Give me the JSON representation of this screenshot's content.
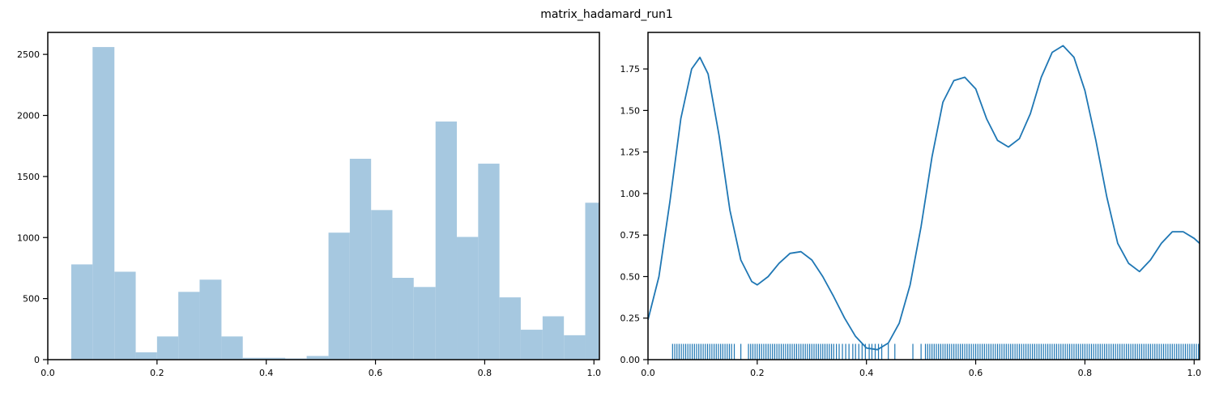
{
  "title": "matrix_hadamard_run1",
  "colors": {
    "hist_fill": "#a6c8e0",
    "kde_line": "#1f77b4",
    "rug": "#1f77b4",
    "axis": "#000000"
  },
  "chart_data": [
    {
      "type": "bar",
      "subtype": "histogram",
      "xlim": [
        0.0,
        1.01
      ],
      "ylim": [
        0,
        2680
      ],
      "xticks": [
        0.0,
        0.2,
        0.4,
        0.6,
        0.8,
        1.0
      ],
      "xtick_labels": [
        "0.0",
        "0.2",
        "0.4",
        "0.6",
        "0.8",
        "1.0"
      ],
      "yticks": [
        0,
        500,
        1000,
        1500,
        2000,
        2500
      ],
      "ytick_labels": [
        "0",
        "500",
        "1000",
        "1500",
        "2000",
        "2500"
      ],
      "bin_edges": [
        0.043,
        0.082,
        0.122,
        0.161,
        0.2,
        0.239,
        0.278,
        0.318,
        0.357,
        0.396,
        0.435,
        0.474,
        0.514,
        0.553,
        0.592,
        0.631,
        0.67,
        0.71,
        0.749,
        0.788,
        0.827,
        0.866,
        0.906,
        0.945,
        0.984,
        1.023
      ],
      "values": [
        780,
        2560,
        720,
        60,
        190,
        555,
        655,
        190,
        15,
        15,
        10,
        30,
        1040,
        1645,
        1225,
        670,
        595,
        1950,
        1005,
        1605,
        510,
        245,
        355,
        200,
        1285
      ],
      "grid": false
    },
    {
      "type": "line",
      "subtype": "kde_with_rug",
      "xlim": [
        0.0,
        1.01
      ],
      "ylim": [
        0.0,
        1.97
      ],
      "xticks": [
        0.0,
        0.2,
        0.4,
        0.6,
        0.8,
        1.0
      ],
      "xtick_labels": [
        "0.0",
        "0.2",
        "0.4",
        "0.6",
        "0.8",
        "1.0"
      ],
      "yticks": [
        0.0,
        0.25,
        0.5,
        0.75,
        1.0,
        1.25,
        1.5,
        1.75
      ],
      "ytick_labels": [
        "0.00",
        "0.25",
        "0.50",
        "0.75",
        "1.00",
        "1.25",
        "1.50",
        "1.75"
      ],
      "x": [
        0.0,
        0.02,
        0.04,
        0.06,
        0.08,
        0.095,
        0.11,
        0.13,
        0.15,
        0.17,
        0.19,
        0.2,
        0.22,
        0.24,
        0.26,
        0.28,
        0.3,
        0.32,
        0.34,
        0.36,
        0.38,
        0.4,
        0.42,
        0.44,
        0.46,
        0.48,
        0.5,
        0.52,
        0.54,
        0.56,
        0.58,
        0.6,
        0.62,
        0.64,
        0.66,
        0.68,
        0.7,
        0.72,
        0.74,
        0.76,
        0.78,
        0.8,
        0.82,
        0.84,
        0.86,
        0.88,
        0.9,
        0.92,
        0.94,
        0.96,
        0.98,
        1.0,
        1.01
      ],
      "y": [
        0.24,
        0.5,
        0.95,
        1.45,
        1.75,
        1.82,
        1.72,
        1.35,
        0.9,
        0.6,
        0.47,
        0.45,
        0.5,
        0.58,
        0.64,
        0.65,
        0.6,
        0.5,
        0.38,
        0.25,
        0.14,
        0.07,
        0.06,
        0.1,
        0.22,
        0.45,
        0.8,
        1.22,
        1.55,
        1.68,
        1.7,
        1.63,
        1.45,
        1.32,
        1.28,
        1.33,
        1.48,
        1.7,
        1.85,
        1.89,
        1.82,
        1.62,
        1.32,
        0.98,
        0.7,
        0.58,
        0.53,
        0.6,
        0.7,
        0.77,
        0.77,
        0.73,
        0.7
      ],
      "rug_height": 0.095,
      "rug_x": [
        0.045,
        0.049,
        0.053,
        0.057,
        0.061,
        0.065,
        0.069,
        0.073,
        0.077,
        0.081,
        0.085,
        0.089,
        0.093,
        0.097,
        0.101,
        0.105,
        0.109,
        0.113,
        0.117,
        0.121,
        0.125,
        0.129,
        0.133,
        0.137,
        0.141,
        0.145,
        0.149,
        0.153,
        0.158,
        0.17,
        0.184,
        0.188,
        0.192,
        0.196,
        0.2,
        0.204,
        0.208,
        0.212,
        0.216,
        0.22,
        0.224,
        0.228,
        0.232,
        0.236,
        0.24,
        0.244,
        0.248,
        0.252,
        0.256,
        0.26,
        0.264,
        0.268,
        0.272,
        0.276,
        0.28,
        0.284,
        0.288,
        0.292,
        0.296,
        0.3,
        0.304,
        0.308,
        0.312,
        0.316,
        0.32,
        0.324,
        0.328,
        0.332,
        0.336,
        0.34,
        0.345,
        0.35,
        0.356,
        0.362,
        0.368,
        0.375,
        0.38,
        0.386,
        0.392,
        0.398,
        0.405,
        0.41,
        0.416,
        0.422,
        0.428,
        0.44,
        0.452,
        0.485,
        0.5,
        0.508,
        0.512,
        0.516,
        0.52,
        0.524,
        0.528,
        0.532,
        0.536,
        0.54,
        0.544,
        0.548,
        0.552,
        0.556,
        0.56,
        0.564,
        0.568,
        0.572,
        0.576,
        0.58,
        0.584,
        0.588,
        0.592,
        0.596,
        0.6,
        0.604,
        0.608,
        0.612,
        0.616,
        0.62,
        0.624,
        0.628,
        0.632,
        0.636,
        0.64,
        0.644,
        0.648,
        0.652,
        0.656,
        0.66,
        0.664,
        0.668,
        0.672,
        0.676,
        0.68,
        0.684,
        0.688,
        0.692,
        0.696,
        0.7,
        0.704,
        0.708,
        0.712,
        0.716,
        0.72,
        0.724,
        0.728,
        0.732,
        0.736,
        0.74,
        0.744,
        0.748,
        0.752,
        0.756,
        0.76,
        0.764,
        0.768,
        0.772,
        0.776,
        0.78,
        0.784,
        0.788,
        0.792,
        0.796,
        0.8,
        0.804,
        0.808,
        0.812,
        0.816,
        0.82,
        0.824,
        0.828,
        0.832,
        0.836,
        0.84,
        0.844,
        0.848,
        0.852,
        0.856,
        0.86,
        0.864,
        0.868,
        0.872,
        0.876,
        0.88,
        0.884,
        0.888,
        0.892,
        0.896,
        0.9,
        0.904,
        0.908,
        0.912,
        0.916,
        0.92,
        0.924,
        0.928,
        0.932,
        0.936,
        0.94,
        0.944,
        0.948,
        0.952,
        0.956,
        0.96,
        0.964,
        0.968,
        0.972,
        0.976,
        0.98,
        0.984,
        0.988,
        0.992,
        0.996,
        1.0,
        1.004,
        1.008
      ],
      "grid": false
    }
  ]
}
